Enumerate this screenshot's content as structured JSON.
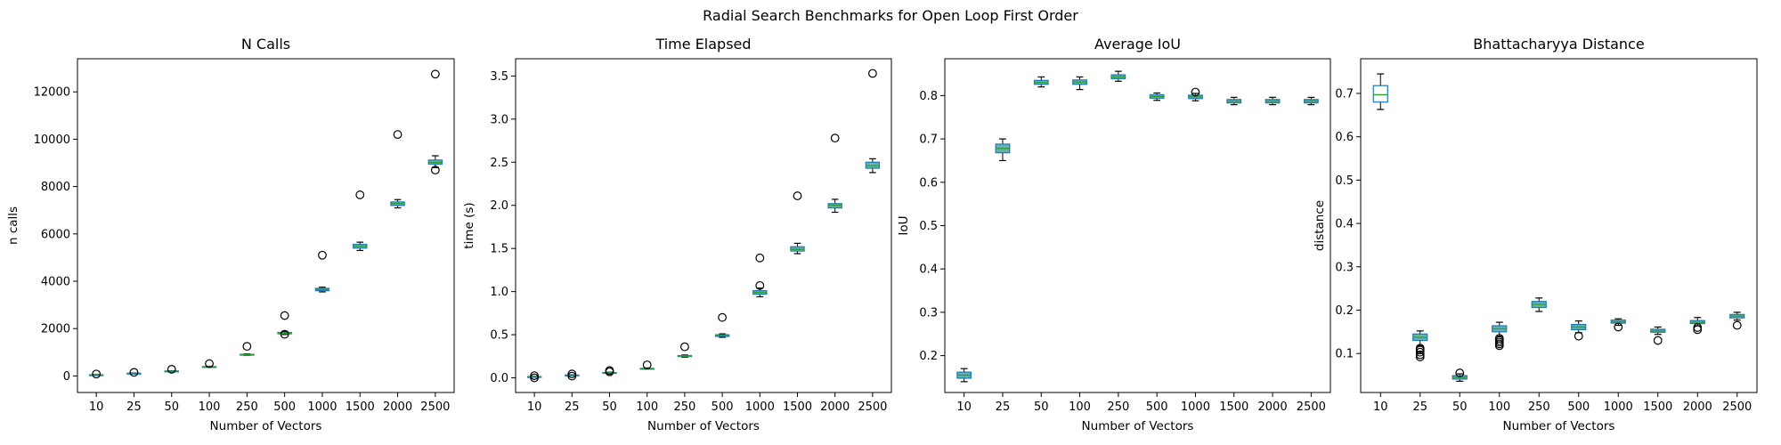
{
  "figure": {
    "suptitle": "Radial Search Benchmarks for Open Loop First Order",
    "colors": {
      "box_edge": "#1f77b4",
      "box_fill": "#66b2b2",
      "median": "#2ca02c",
      "whisker": "#000000",
      "flier": "#000000",
      "first_box_fill": "#ffffff"
    }
  },
  "chart_data": [
    {
      "type": "box",
      "title": "N Calls",
      "xlabel": "Number of Vectors",
      "ylabel": "n calls",
      "categories": [
        "10",
        "25",
        "50",
        "100",
        "250",
        "500",
        "1000",
        "1500",
        "2000",
        "2500"
      ],
      "ylim": [
        -700,
        13400
      ],
      "yticks": [
        0,
        2000,
        4000,
        6000,
        8000,
        10000,
        12000
      ],
      "boxes": [
        {
          "whislo": 30,
          "q1": 40,
          "med": 45,
          "q3": 50,
          "whishi": 60,
          "fliers": [
            80
          ]
        },
        {
          "whislo": 95,
          "q1": 105,
          "med": 110,
          "q3": 115,
          "whishi": 125,
          "fliers": [
            150
          ]
        },
        {
          "whislo": 180,
          "q1": 195,
          "med": 200,
          "q3": 210,
          "whishi": 220,
          "fliers": [
            280
          ]
        },
        {
          "whislo": 360,
          "q1": 375,
          "med": 385,
          "q3": 395,
          "whishi": 410,
          "fliers": [
            520
          ]
        },
        {
          "whislo": 870,
          "q1": 880,
          "med": 900,
          "q3": 915,
          "whishi": 930,
          "fliers": [
            1250
          ]
        },
        {
          "whislo": 1750,
          "q1": 1780,
          "med": 1810,
          "q3": 1840,
          "whishi": 1880,
          "fliers": [
            2550,
            1760
          ]
        },
        {
          "whislo": 3550,
          "q1": 3600,
          "med": 3650,
          "q3": 3700,
          "whishi": 3750,
          "fliers": [
            5100
          ]
        },
        {
          "whislo": 5300,
          "q1": 5400,
          "med": 5480,
          "q3": 5560,
          "whishi": 5650,
          "fliers": [
            7650
          ]
        },
        {
          "whislo": 7100,
          "q1": 7200,
          "med": 7280,
          "q3": 7350,
          "whishi": 7450,
          "fliers": [
            10200
          ]
        },
        {
          "whislo": 8800,
          "q1": 8950,
          "med": 9020,
          "q3": 9120,
          "whishi": 9300,
          "fliers": [
            12750,
            8700
          ]
        }
      ]
    },
    {
      "type": "box",
      "title": "Time Elapsed",
      "xlabel": "Number of Vectors",
      "ylabel": "time (s)",
      "categories": [
        "10",
        "25",
        "50",
        "100",
        "250",
        "500",
        "1000",
        "1500",
        "2000",
        "2500"
      ],
      "ylim": [
        -0.17,
        3.7
      ],
      "yticks": [
        0.0,
        0.5,
        1.0,
        1.5,
        2.0,
        2.5,
        3.0,
        3.5
      ],
      "yticklabels": [
        "0.0",
        "0.5",
        "1.0",
        "1.5",
        "2.0",
        "2.5",
        "3.0",
        "3.5"
      ],
      "boxes": [
        {
          "whislo": 0.008,
          "q1": 0.011,
          "med": 0.013,
          "q3": 0.015,
          "whishi": 0.018,
          "fliers": [
            0.025,
            0.0
          ]
        },
        {
          "whislo": 0.025,
          "q1": 0.028,
          "med": 0.03,
          "q3": 0.033,
          "whishi": 0.036,
          "fliers": [
            0.045,
            0.02
          ]
        },
        {
          "whislo": 0.05,
          "q1": 0.055,
          "med": 0.058,
          "q3": 0.062,
          "whishi": 0.066,
          "fliers": [
            0.085,
            0.07
          ]
        },
        {
          "whislo": 0.1,
          "q1": 0.104,
          "med": 0.107,
          "q3": 0.11,
          "whishi": 0.115,
          "fliers": [
            0.15
          ]
        },
        {
          "whislo": 0.24,
          "q1": 0.247,
          "med": 0.252,
          "q3": 0.258,
          "whishi": 0.265,
          "fliers": [
            0.36
          ]
        },
        {
          "whislo": 0.47,
          "q1": 0.48,
          "med": 0.49,
          "q3": 0.5,
          "whishi": 0.51,
          "fliers": [
            0.7
          ]
        },
        {
          "whislo": 0.94,
          "q1": 0.97,
          "med": 0.99,
          "q3": 1.01,
          "whishi": 1.04,
          "fliers": [
            1.39,
            1.07
          ]
        },
        {
          "whislo": 1.44,
          "q1": 1.47,
          "med": 1.49,
          "q3": 1.52,
          "whishi": 1.56,
          "fliers": [
            2.11
          ]
        },
        {
          "whislo": 1.92,
          "q1": 1.97,
          "med": 2.0,
          "q3": 2.02,
          "whishi": 2.07,
          "fliers": [
            2.78
          ]
        },
        {
          "whislo": 2.38,
          "q1": 2.43,
          "med": 2.46,
          "q3": 2.5,
          "whishi": 2.54,
          "fliers": [
            3.53
          ]
        }
      ]
    },
    {
      "type": "box",
      "title": "Average IoU",
      "xlabel": "Number of Vectors",
      "ylabel": "IoU",
      "categories": [
        "10",
        "25",
        "50",
        "100",
        "250",
        "500",
        "1000",
        "1500",
        "2000",
        "2500"
      ],
      "ylim": [
        0.115,
        0.885
      ],
      "yticks": [
        0.2,
        0.3,
        0.4,
        0.5,
        0.6,
        0.7,
        0.8
      ],
      "yticklabels": [
        "0.2",
        "0.3",
        "0.4",
        "0.5",
        "0.6",
        "0.7",
        "0.8"
      ],
      "boxes": [
        {
          "whislo": 0.14,
          "q1": 0.148,
          "med": 0.155,
          "q3": 0.162,
          "whishi": 0.17,
          "fliers": []
        },
        {
          "whislo": 0.65,
          "q1": 0.668,
          "med": 0.678,
          "q3": 0.688,
          "whishi": 0.7,
          "fliers": []
        },
        {
          "whislo": 0.82,
          "q1": 0.826,
          "med": 0.83,
          "q3": 0.835,
          "whishi": 0.843,
          "fliers": []
        },
        {
          "whislo": 0.814,
          "q1": 0.826,
          "med": 0.831,
          "q3": 0.836,
          "whishi": 0.843,
          "fliers": []
        },
        {
          "whislo": 0.833,
          "q1": 0.839,
          "med": 0.843,
          "q3": 0.848,
          "whishi": 0.856,
          "fliers": []
        },
        {
          "whislo": 0.789,
          "q1": 0.794,
          "med": 0.798,
          "q3": 0.802,
          "whishi": 0.806,
          "fliers": []
        },
        {
          "whislo": 0.788,
          "q1": 0.793,
          "med": 0.797,
          "q3": 0.801,
          "whishi": 0.805,
          "fliers": [
            0.808
          ]
        },
        {
          "whislo": 0.779,
          "q1": 0.783,
          "med": 0.787,
          "q3": 0.791,
          "whishi": 0.796,
          "fliers": []
        },
        {
          "whislo": 0.779,
          "q1": 0.783,
          "med": 0.787,
          "q3": 0.791,
          "whishi": 0.796,
          "fliers": []
        },
        {
          "whislo": 0.779,
          "q1": 0.783,
          "med": 0.787,
          "q3": 0.791,
          "whishi": 0.796,
          "fliers": []
        }
      ]
    },
    {
      "type": "box",
      "title": "Bhattacharyya Distance",
      "xlabel": "Number of Vectors",
      "ylabel": "distance",
      "categories": [
        "10",
        "25",
        "50",
        "100",
        "250",
        "500",
        "1000",
        "1500",
        "2000",
        "2500"
      ],
      "ylim": [
        0.01,
        0.78
      ],
      "yticks": [
        0.1,
        0.2,
        0.3,
        0.4,
        0.5,
        0.6,
        0.7
      ],
      "yticklabels": [
        "0.1",
        "0.2",
        "0.3",
        "0.4",
        "0.5",
        "0.6",
        "0.7"
      ],
      "boxes": [
        {
          "whislo": 0.663,
          "q1": 0.68,
          "med": 0.697,
          "q3": 0.718,
          "whishi": 0.745,
          "fliers": []
        },
        {
          "whislo": 0.118,
          "q1": 0.13,
          "med": 0.137,
          "q3": 0.145,
          "whishi": 0.152,
          "fliers": [
            0.112,
            0.108,
            0.103,
            0.097,
            0.092
          ]
        },
        {
          "whislo": 0.036,
          "q1": 0.041,
          "med": 0.045,
          "q3": 0.049,
          "whishi": 0.053,
          "fliers": [
            0.055
          ]
        },
        {
          "whislo": 0.14,
          "q1": 0.15,
          "med": 0.157,
          "q3": 0.164,
          "whishi": 0.172,
          "fliers": [
            0.135,
            0.13,
            0.126,
            0.122,
            0.118
          ]
        },
        {
          "whislo": 0.197,
          "q1": 0.206,
          "med": 0.213,
          "q3": 0.22,
          "whishi": 0.228,
          "fliers": []
        },
        {
          "whislo": 0.148,
          "q1": 0.155,
          "med": 0.161,
          "q3": 0.167,
          "whishi": 0.175,
          "fliers": [
            0.14
          ]
        },
        {
          "whislo": 0.165,
          "q1": 0.17,
          "med": 0.173,
          "q3": 0.177,
          "whishi": 0.18,
          "fliers": [
            0.161
          ]
        },
        {
          "whislo": 0.144,
          "q1": 0.149,
          "med": 0.152,
          "q3": 0.156,
          "whishi": 0.161,
          "fliers": [
            0.13
          ]
        },
        {
          "whislo": 0.164,
          "q1": 0.169,
          "med": 0.172,
          "q3": 0.176,
          "whishi": 0.183,
          "fliers": [
            0.16,
            0.155
          ]
        },
        {
          "whislo": 0.177,
          "q1": 0.182,
          "med": 0.186,
          "q3": 0.19,
          "whishi": 0.195,
          "fliers": [
            0.165
          ]
        }
      ]
    }
  ]
}
